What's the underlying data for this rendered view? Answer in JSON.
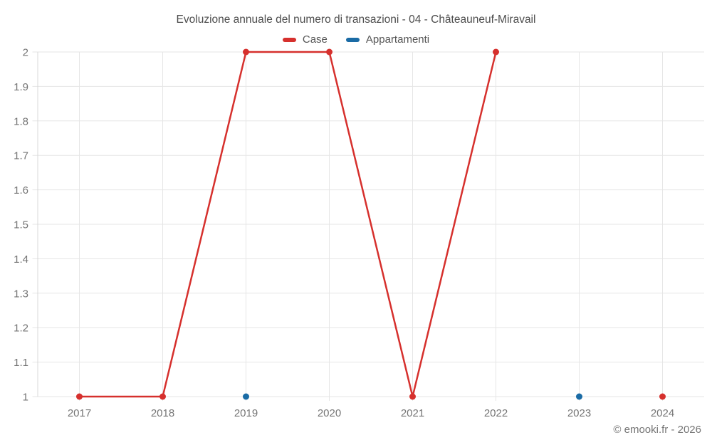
{
  "title": "Evoluzione annuale del numero di transazioni - 04 - Châteauneuf-Miravail",
  "legend": {
    "items": [
      {
        "label": "Case",
        "color": "#d6302d"
      },
      {
        "label": "Appartamenti",
        "color": "#1a6ba5"
      }
    ]
  },
  "credits": "© emooki.fr - 2026",
  "chart_data": {
    "type": "line",
    "title": "Evoluzione annuale del numero di transazioni - 04 - Châteauneuf-Miravail",
    "categories": [
      "2017",
      "2018",
      "2019",
      "2020",
      "2021",
      "2022",
      "2023",
      "2024"
    ],
    "series": [
      {
        "name": "Case",
        "color": "#d6302d",
        "values": [
          1,
          1,
          2,
          2,
          1,
          2,
          null,
          1
        ]
      },
      {
        "name": "Appartamenti",
        "color": "#1a6ba5",
        "values": [
          null,
          null,
          1,
          null,
          null,
          null,
          1,
          null
        ]
      }
    ],
    "xlabel": "",
    "ylabel": "",
    "ylim": [
      1,
      2
    ],
    "yticks": [
      1,
      1.1,
      1.2,
      1.3,
      1.4,
      1.5,
      1.6,
      1.7,
      1.8,
      1.9,
      2
    ],
    "grid": true,
    "legend_position": "top",
    "marker_radius": 4.5,
    "line_width": 2.5
  },
  "colors": {
    "grid": "#e6e6e6",
    "axis": "#d8d8d8",
    "tick_label": "#757575",
    "title": "#4d4d4d",
    "legend_text": "#555555",
    "credits": "#757575"
  }
}
